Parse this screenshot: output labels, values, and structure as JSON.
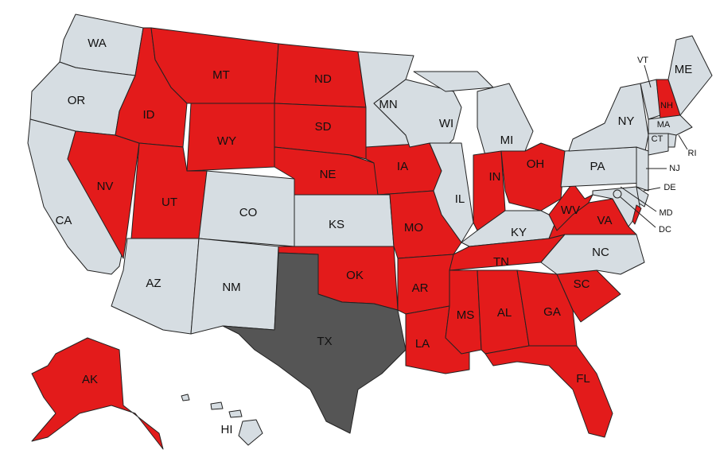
{
  "colors": {
    "red": "#e31b1b",
    "gray": "#d6dde2",
    "dark": "#555555"
  },
  "states": {
    "WA": "gray",
    "OR": "gray",
    "CA": "gray",
    "NV": "red",
    "ID": "red",
    "MT": "red",
    "WY": "red",
    "UT": "red",
    "CO": "gray",
    "AZ": "gray",
    "NM": "gray",
    "ND": "red",
    "SD": "red",
    "NE": "red",
    "KS": "gray",
    "OK": "red",
    "TX": "dark",
    "MN": "gray",
    "IA": "red",
    "MO": "red",
    "AR": "red",
    "LA": "red",
    "WI": "gray",
    "IL": "gray",
    "MI": "gray",
    "IN": "red",
    "OH": "red",
    "KY": "gray",
    "TN": "red",
    "MS": "red",
    "AL": "red",
    "GA": "red",
    "FL": "red",
    "SC": "red",
    "NC": "gray",
    "VA": "red",
    "WV": "red",
    "PA": "gray",
    "NY": "gray",
    "VT": "gray",
    "NH": "red",
    "ME": "gray",
    "MA": "gray",
    "CT": "gray",
    "RI": "gray",
    "NJ": "gray",
    "DE": "gray",
    "MD": "gray",
    "DC": "gray",
    "AK": "red",
    "HI": "gray"
  }
}
